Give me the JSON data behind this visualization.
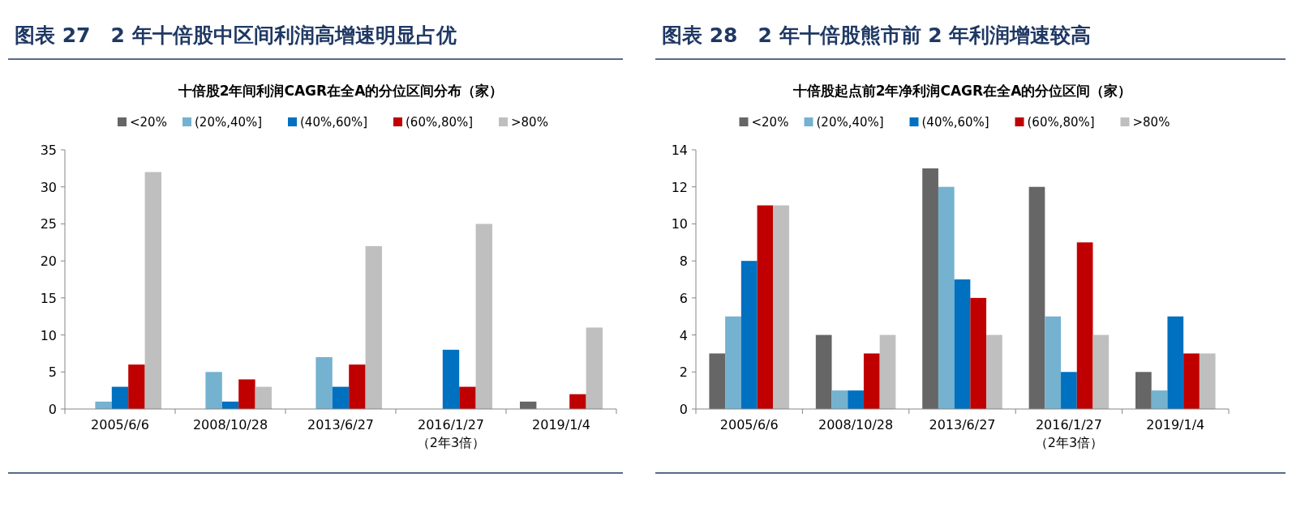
{
  "chart_data": [
    {
      "type": "bar",
      "title": "图表 27　2 年十倍股中区间利润高增速明显占优",
      "subtitle": "十倍股2年间利润CAGR在全A的分位区间分布（家）",
      "categories": [
        "2005/6/6",
        "2008/10/28",
        "2013/6/27",
        "2016/1/27\n（2年3倍）",
        "2019/1/4"
      ],
      "series": [
        {
          "name": "<20%",
          "color": "#666666",
          "values": [
            0,
            0,
            0,
            0,
            1
          ]
        },
        {
          "name": "(20%,40%]",
          "color": "#74b2cf",
          "values": [
            1,
            5,
            7,
            0,
            0
          ]
        },
        {
          "name": "(40%,60%]",
          "color": "#0070c0",
          "values": [
            3,
            1,
            3,
            8,
            0
          ]
        },
        {
          "name": "(60%,80%]",
          "color": "#c00000",
          "values": [
            6,
            4,
            6,
            3,
            2
          ]
        },
        {
          "name": ">80%",
          "color": "#bfbfbf",
          "values": [
            32,
            3,
            22,
            25,
            11
          ]
        }
      ],
      "ylim": [
        0,
        35
      ],
      "yticks": [
        0,
        5,
        10,
        15,
        20,
        25,
        30,
        35
      ],
      "legend": "top",
      "grid": false
    },
    {
      "type": "bar",
      "title": "图表 28　2 年十倍股熊市前 2 年利润增速较高",
      "subtitle": "十倍股起点前2年净利润CAGR在全A的分位区间（家）",
      "categories": [
        "2005/6/6",
        "2008/10/28",
        "2013/6/27",
        "2016/1/27\n（2年3倍）",
        "2019/1/4"
      ],
      "series": [
        {
          "name": "<20%",
          "color": "#666666",
          "values": [
            3,
            4,
            13,
            12,
            2
          ]
        },
        {
          "name": "(20%,40%]",
          "color": "#74b2cf",
          "values": [
            5,
            1,
            12,
            5,
            1
          ]
        },
        {
          "name": "(40%,60%]",
          "color": "#0070c0",
          "values": [
            8,
            1,
            7,
            2,
            5
          ]
        },
        {
          "name": "(60%,80%]",
          "color": "#c00000",
          "values": [
            11,
            3,
            6,
            9,
            3
          ]
        },
        {
          "name": ">80%",
          "color": "#bfbfbf",
          "values": [
            11,
            4,
            4,
            4,
            3
          ]
        }
      ],
      "ylim": [
        0,
        14
      ],
      "yticks": [
        0,
        2,
        4,
        6,
        8,
        10,
        12,
        14
      ],
      "legend": "top",
      "grid": false
    }
  ]
}
